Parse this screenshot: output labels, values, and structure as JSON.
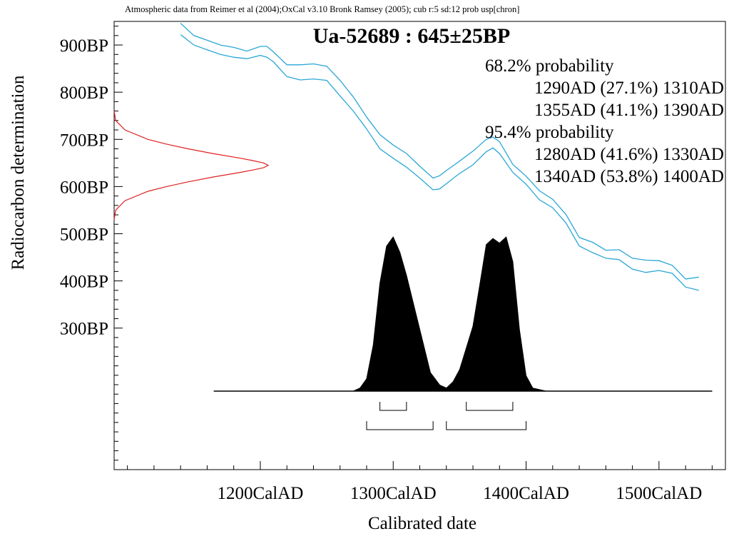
{
  "chart_data": {
    "type": "line",
    "header": "Atmospheric data from Reimer et al (2004);OxCal v3.10 Bronk Ramsey (2005); cub r:5 sd:12 prob usp[chron]",
    "title": "Ua-52689 : 645±25BP",
    "xlabel": "Calibrated date",
    "ylabel": "Radiocarbon determination",
    "xlim": [
      1090,
      1550
    ],
    "ylim": [
      0,
      950
    ],
    "x_ticks": [
      1200,
      1300,
      1400,
      1500
    ],
    "x_tick_labels": [
      "1200CalAD",
      "1300CalAD",
      "1400CalAD",
      "1500CalAD"
    ],
    "x_minor_step": 20,
    "y_ticks": [
      900,
      800,
      700,
      600,
      500,
      400,
      300
    ],
    "y_tick_labels": [
      "900BP",
      "800BP",
      "700BP",
      "600BP",
      "500BP",
      "400BP",
      "300BP"
    ],
    "y_minor_step": 20,
    "probability_text": [
      "68.2% probability",
      "1290AD (27.1%) 1310AD",
      "1355AD (41.1%) 1390AD",
      "95.4% probability",
      "1280AD (41.6%) 1330AD",
      "1340AD (53.8%) 1400AD"
    ],
    "ranges_68": [
      [
        1290,
        1310
      ],
      [
        1355,
        1390
      ]
    ],
    "ranges_95": [
      [
        1280,
        1330
      ],
      [
        1340,
        1400
      ]
    ],
    "measurement": {
      "mean": 645,
      "sd": 25
    },
    "colors": {
      "curve": "#2aa7d6",
      "measurement": "#e02020",
      "distribution": "#000000"
    },
    "calibration_upper": {
      "x": [
        1140,
        1150,
        1160,
        1170,
        1180,
        1190,
        1200,
        1205,
        1210,
        1220,
        1230,
        1240,
        1250,
        1260,
        1270,
        1280,
        1290,
        1300,
        1310,
        1320,
        1330,
        1335,
        1340,
        1350,
        1360,
        1370,
        1375,
        1380,
        1390,
        1400,
        1410,
        1420,
        1430,
        1440,
        1450,
        1460,
        1470,
        1480,
        1490,
        1500,
        1510,
        1520,
        1530
      ],
      "y": [
        946,
        920,
        910,
        900,
        895,
        887,
        897,
        897,
        885,
        858,
        858,
        860,
        855,
        825,
        790,
        747,
        710,
        688,
        670,
        643,
        618,
        623,
        634,
        654,
        675,
        700,
        705,
        695,
        647,
        622,
        591,
        573,
        541,
        492,
        482,
        465,
        466,
        448,
        444,
        443,
        433,
        404,
        408
      ]
    },
    "calibration_lower": {
      "x": [
        1140,
        1150,
        1160,
        1170,
        1180,
        1190,
        1200,
        1205,
        1210,
        1220,
        1230,
        1240,
        1250,
        1260,
        1270,
        1280,
        1290,
        1300,
        1310,
        1320,
        1330,
        1335,
        1340,
        1350,
        1360,
        1370,
        1375,
        1380,
        1390,
        1400,
        1410,
        1420,
        1430,
        1440,
        1450,
        1460,
        1470,
        1480,
        1490,
        1500,
        1510,
        1520,
        1530
      ],
      "y": [
        922,
        900,
        890,
        880,
        874,
        871,
        878,
        874,
        864,
        833,
        826,
        828,
        825,
        792,
        760,
        722,
        680,
        660,
        641,
        618,
        593,
        595,
        606,
        628,
        646,
        674,
        682,
        670,
        630,
        605,
        572,
        555,
        523,
        474,
        460,
        448,
        445,
        425,
        418,
        422,
        416,
        387,
        380
      ]
    },
    "measurement_curve": {
      "y": [
        530,
        550,
        570,
        590,
        600,
        610,
        620,
        630,
        635,
        640,
        645,
        650,
        655,
        660,
        670,
        680,
        690,
        700,
        720,
        740,
        760
      ],
      "density": [
        0.0,
        0.01,
        0.07,
        0.22,
        0.34,
        0.48,
        0.64,
        0.82,
        0.9,
        0.97,
        1.0,
        0.97,
        0.9,
        0.82,
        0.64,
        0.48,
        0.34,
        0.22,
        0.07,
        0.01,
        0.0
      ]
    },
    "distribution": {
      "x": [
        1165,
        1270,
        1275,
        1280,
        1285,
        1290,
        1295,
        1300,
        1305,
        1310,
        1320,
        1328,
        1335,
        1340,
        1345,
        1350,
        1360,
        1365,
        1370,
        1375,
        1380,
        1385,
        1390,
        1395,
        1400,
        1405,
        1415,
        1540
      ],
      "density": [
        0,
        0,
        0.02,
        0.08,
        0.3,
        0.7,
        0.94,
        1.0,
        0.9,
        0.75,
        0.4,
        0.12,
        0.04,
        0.02,
        0.06,
        0.14,
        0.42,
        0.68,
        0.95,
        0.99,
        0.96,
        1.0,
        0.84,
        0.4,
        0.1,
        0.02,
        0,
        0
      ]
    }
  }
}
